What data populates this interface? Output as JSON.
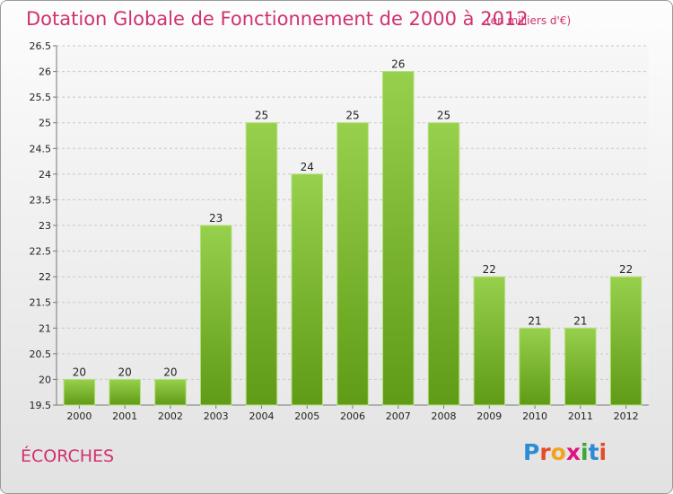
{
  "title": "Dotation Globale de Fonctionnement de 2000 à 2012",
  "subtitle": "(en milliers d'€)",
  "commune": "ÉCORCHES",
  "logo": {
    "letters": [
      "P",
      "r",
      "o",
      "x",
      "i",
      "t",
      "i"
    ],
    "colors": [
      "#2d8bd6",
      "#e44c27",
      "#f2a31b",
      "#e2137f",
      "#3aa935",
      "#2d8bd6",
      "#e44c27"
    ]
  },
  "chart_data": {
    "type": "bar",
    "categories": [
      "2000",
      "2001",
      "2002",
      "2003",
      "2004",
      "2005",
      "2006",
      "2007",
      "2008",
      "2009",
      "2010",
      "2011",
      "2012"
    ],
    "values": [
      20,
      20,
      20,
      23,
      25,
      24,
      25,
      26,
      25,
      22,
      21,
      21,
      22
    ],
    "title": "Dotation Globale de Fonctionnement de 2000 à 2012",
    "xlabel": "",
    "ylabel": "",
    "ylim": [
      19.5,
      26.5
    ],
    "yticks": [
      "19.5",
      "20",
      "20.5",
      "21",
      "21.5",
      "22",
      "22.5",
      "23",
      "23.5",
      "24",
      "24.5",
      "25",
      "25.5",
      "26",
      "26.5"
    ],
    "grid": true,
    "bar_color": "#7fbd32"
  }
}
